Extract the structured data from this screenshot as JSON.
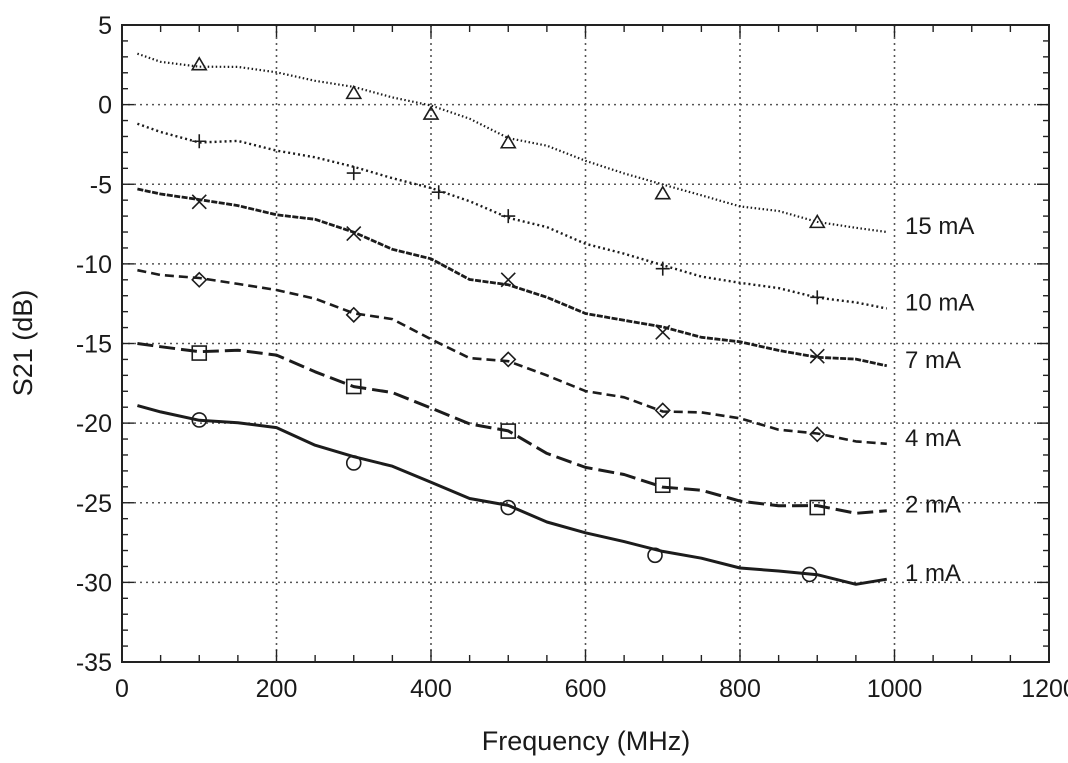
{
  "chart_data": {
    "type": "line",
    "xlabel": "Frequency (MHz)",
    "ylabel": "S21 (dB)",
    "xlim": [
      0,
      1200
    ],
    "ylim": [
      -35,
      5
    ],
    "xticks": [
      0,
      200,
      400,
      600,
      800,
      1000,
      1200
    ],
    "yticks": [
      5,
      0,
      -5,
      -10,
      -15,
      -20,
      -25,
      -30,
      -35
    ],
    "grid": true,
    "legend": "inline-right",
    "series": [
      {
        "name": "15 mA",
        "marker": "triangle",
        "style": "dotted-fine",
        "x": [
          20,
          50,
          100,
          150,
          200,
          250,
          300,
          350,
          400,
          450,
          500,
          550,
          600,
          650,
          700,
          750,
          800,
          850,
          900,
          950,
          990
        ],
        "y": [
          3.2,
          2.6,
          2.5,
          2.3,
          2.0,
          1.6,
          1.0,
          0.5,
          0.0,
          -1.0,
          -2.0,
          -2.6,
          -3.6,
          -4.2,
          -5.1,
          -5.7,
          -6.3,
          -6.8,
          -7.3,
          -7.7,
          -8.0
        ],
        "markers_x": [
          100,
          300,
          400,
          500,
          700,
          900
        ],
        "markers_y": [
          2.5,
          0.7,
          -0.6,
          -2.4,
          -5.6,
          -7.4
        ]
      },
      {
        "name": "10 mA",
        "marker": "plus",
        "style": "dotted",
        "x": [
          20,
          50,
          100,
          150,
          200,
          250,
          300,
          350,
          400,
          450,
          500,
          550,
          600,
          650,
          700,
          750,
          800,
          850,
          900,
          950,
          990
        ],
        "y": [
          -1.2,
          -1.7,
          -2.3,
          -2.4,
          -2.8,
          -3.3,
          -4.0,
          -4.5,
          -5.3,
          -6.1,
          -7.0,
          -7.8,
          -8.7,
          -9.3,
          -10.2,
          -10.7,
          -11.2,
          -11.6,
          -12.0,
          -12.5,
          -12.8
        ],
        "markers_x": [
          100,
          300,
          410,
          500,
          700,
          900
        ],
        "markers_y": [
          -2.3,
          -4.3,
          -5.5,
          -7.0,
          -10.3,
          -12.1
        ]
      },
      {
        "name": "7 mA",
        "marker": "x",
        "style": "dense",
        "x": [
          20,
          50,
          100,
          150,
          200,
          250,
          300,
          350,
          400,
          450,
          500,
          550,
          600,
          650,
          700,
          750,
          800,
          850,
          900,
          950,
          990
        ],
        "y": [
          -5.3,
          -5.5,
          -6.0,
          -6.4,
          -6.8,
          -7.3,
          -8.0,
          -9.0,
          -9.8,
          -10.9,
          -11.3,
          -12.2,
          -13.0,
          -13.6,
          -14.0,
          -14.5,
          -15.0,
          -15.4,
          -15.8,
          -16.1,
          -16.4
        ],
        "markers_x": [
          100,
          300,
          500,
          700,
          900
        ],
        "markers_y": [
          -6.1,
          -8.1,
          -11.0,
          -14.3,
          -15.8
        ]
      },
      {
        "name": "4 mA",
        "marker": "diamond",
        "style": "dashed",
        "x": [
          20,
          50,
          100,
          150,
          200,
          250,
          300,
          350,
          400,
          450,
          500,
          550,
          600,
          650,
          700,
          750,
          800,
          850,
          900,
          950,
          990
        ],
        "y": [
          -10.4,
          -10.6,
          -11.0,
          -11.2,
          -11.6,
          -12.3,
          -13.0,
          -13.5,
          -14.8,
          -15.8,
          -16.2,
          -17.0,
          -17.9,
          -18.5,
          -19.2,
          -19.3,
          -19.8,
          -20.3,
          -20.7,
          -21.2,
          -21.3
        ],
        "markers_x": [
          100,
          300,
          500,
          700,
          900
        ],
        "markers_y": [
          -11.0,
          -13.2,
          -16.0,
          -19.2,
          -20.7
        ]
      },
      {
        "name": "2 mA",
        "marker": "square",
        "style": "dashed-long",
        "x": [
          20,
          50,
          100,
          150,
          200,
          250,
          300,
          350,
          400,
          450,
          500,
          550,
          600,
          650,
          700,
          750,
          800,
          850,
          900,
          950,
          990
        ],
        "y": [
          -15.0,
          -15.2,
          -15.6,
          -15.3,
          -15.8,
          -16.8,
          -17.6,
          -18.2,
          -19.0,
          -20.0,
          -20.6,
          -21.8,
          -22.8,
          -23.3,
          -23.9,
          -24.3,
          -24.9,
          -25.1,
          -25.3,
          -25.6,
          -25.5
        ],
        "markers_x": [
          100,
          300,
          500,
          700,
          900
        ],
        "markers_y": [
          -15.6,
          -17.7,
          -20.5,
          -23.9,
          -25.3
        ]
      },
      {
        "name": "1 mA",
        "marker": "circle",
        "style": "solid",
        "x": [
          20,
          50,
          100,
          150,
          200,
          250,
          300,
          350,
          400,
          450,
          500,
          550,
          600,
          650,
          700,
          750,
          800,
          850,
          900,
          950,
          990
        ],
        "y": [
          -18.9,
          -19.4,
          -19.8,
          -19.9,
          -20.4,
          -21.3,
          -22.1,
          -22.8,
          -23.6,
          -24.8,
          -25.2,
          -26.1,
          -27.0,
          -27.4,
          -28.0,
          -28.6,
          -29.0,
          -29.3,
          -29.6,
          -30.0,
          -29.8
        ],
        "markers_x": [
          100,
          300,
          500,
          690,
          890
        ],
        "markers_y": [
          -19.8,
          -22.5,
          -25.3,
          -28.3,
          -29.5
        ]
      }
    ]
  }
}
